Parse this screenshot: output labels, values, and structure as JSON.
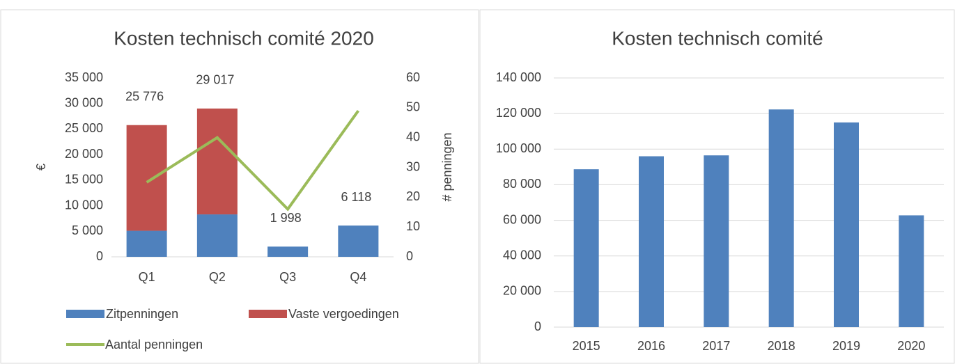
{
  "chart_data": [
    {
      "type": "stacked_bar_line",
      "title": "Kosten technisch comité 2020",
      "ylabel": "€",
      "y2label": "# penningen",
      "categories": [
        "Q1",
        "Q2",
        "Q3",
        "Q4"
      ],
      "series": [
        {
          "name": "Zitpenningen",
          "color": "#4f81bd",
          "values": [
            5100,
            8300,
            1998,
            6118
          ]
        },
        {
          "name": "Vaste vergoedingen",
          "color": "#c0504d",
          "values": [
            20676,
            20717,
            0,
            0
          ]
        },
        {
          "name": "Aantal penningen",
          "color": "#9bbb59",
          "values": [
            25,
            40,
            16,
            49
          ],
          "axis": "y2"
        }
      ],
      "totals": [
        25776,
        29017,
        1998,
        6118
      ],
      "total_labels": [
        "25 776",
        "29 017",
        "1 998",
        "6 118"
      ],
      "ylim": [
        0,
        35000
      ],
      "yticks": [
        0,
        {
          "value": 5000,
          "label": "5 000"
        },
        {
          "value": 10000,
          "label": "10 000"
        },
        {
          "value": 15000,
          "label": "15 000"
        },
        {
          "value": 20000,
          "label": "20 000"
        },
        {
          "value": 25000,
          "label": "25 000"
        },
        {
          "value": 30000,
          "label": "30 000"
        },
        {
          "value": 35000,
          "label": "35 000"
        }
      ],
      "y2lim": [
        0,
        60
      ],
      "y2ticks": [
        0,
        10,
        20,
        30,
        40,
        50,
        60
      ],
      "legend": "bottom"
    },
    {
      "type": "bar",
      "title": "Kosten technisch comité",
      "categories": [
        "2015",
        "2016",
        "2017",
        "2018",
        "2019",
        "2020"
      ],
      "values": [
        88700,
        96000,
        96500,
        122300,
        115000,
        62800
      ],
      "color": "#4f81bd",
      "ylim": [
        0,
        140000
      ],
      "yticks": [
        0,
        {
          "value": 20000,
          "label": "20 000"
        },
        {
          "value": 40000,
          "label": "40 000"
        },
        {
          "value": 60000,
          "label": "60 000"
        },
        {
          "value": 80000,
          "label": "80 000"
        },
        {
          "value": 100000,
          "label": "100 000"
        },
        {
          "value": 120000,
          "label": "120 000"
        },
        {
          "value": 140000,
          "label": "140 000"
        }
      ],
      "grid": true
    }
  ]
}
